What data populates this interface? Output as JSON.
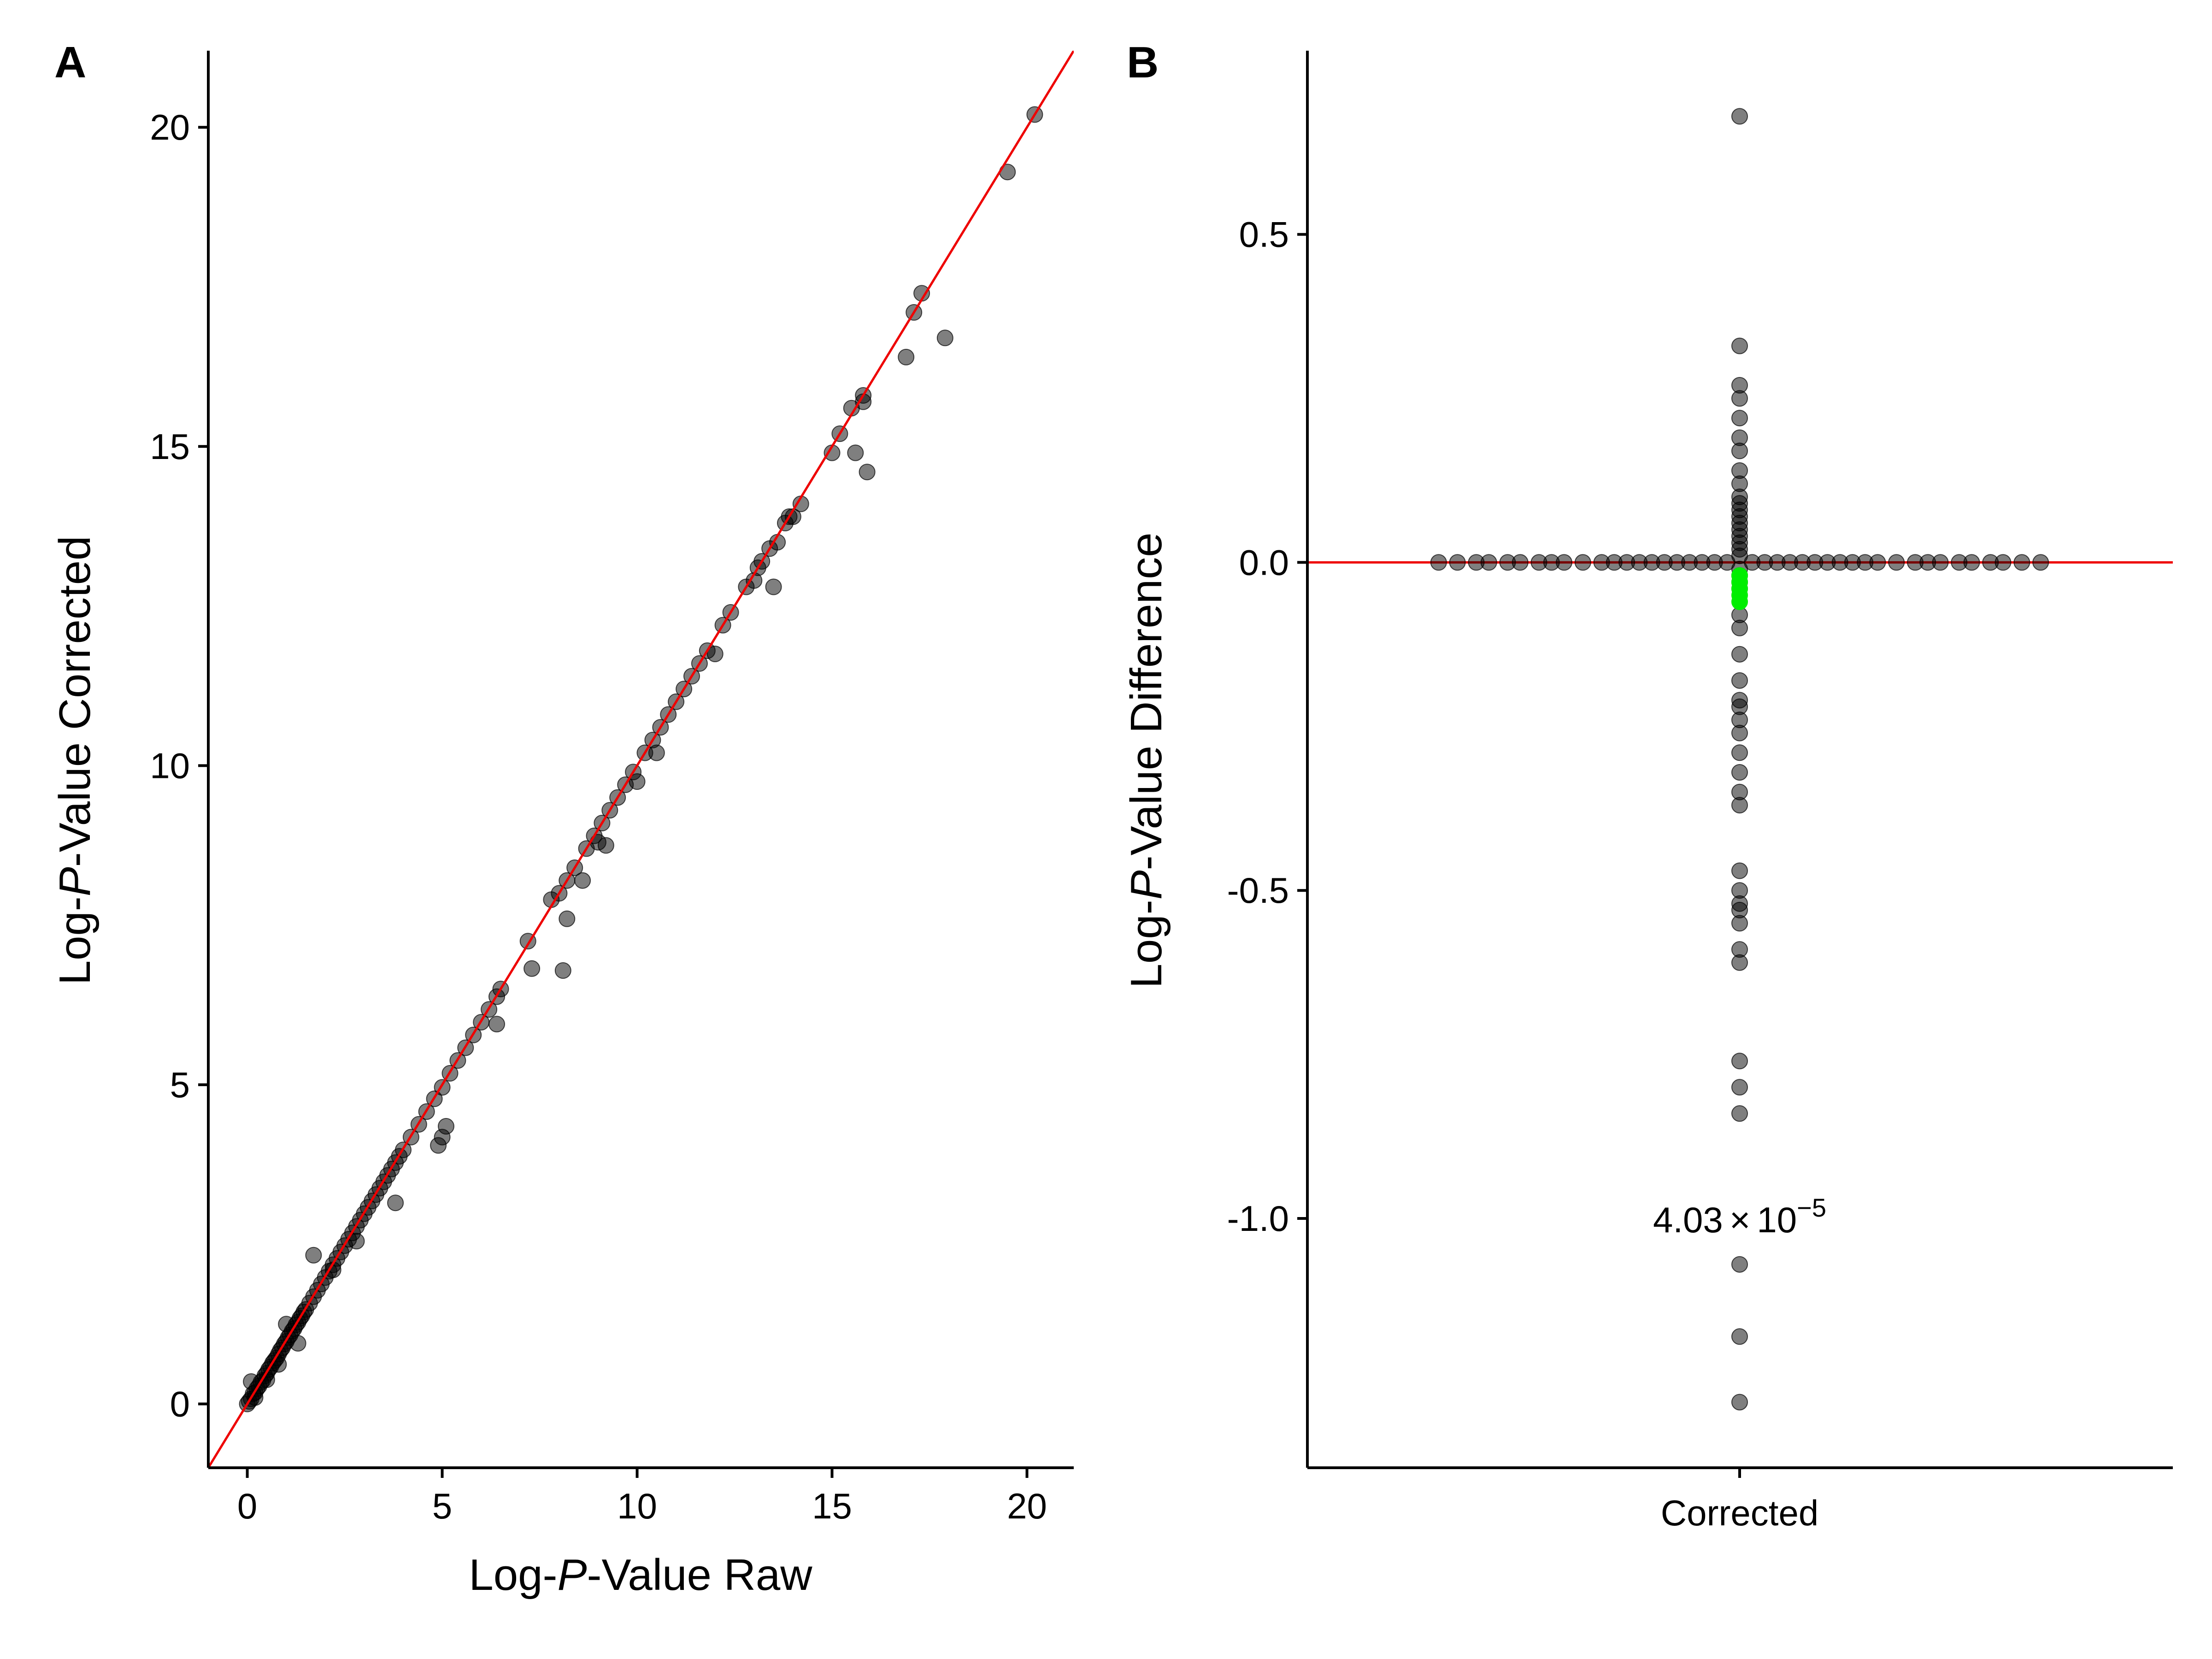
{
  "chart_data": [
    {
      "panel": "A",
      "type": "scatter",
      "title": "",
      "xlabel": {
        "pre": "Log-",
        "italic": "P",
        "post": "-Value Raw"
      },
      "ylabel": {
        "pre": "Log-",
        "italic": "P",
        "post": "-Value Corrected"
      },
      "xlim": [
        -1,
        21.2
      ],
      "ylim": [
        -1,
        21.2
      ],
      "xticks": [
        0,
        5,
        10,
        15,
        20
      ],
      "yticks": [
        0,
        5,
        10,
        15,
        20
      ],
      "xtick_labels": [
        "0",
        "5",
        "10",
        "15",
        "20"
      ],
      "ytick_labels": [
        "0",
        "5",
        "10",
        "15",
        "20"
      ],
      "reference_line": {
        "type": "identity",
        "slope": 1,
        "intercept": 0,
        "color": "#ee0000"
      },
      "point_color": "#000000",
      "point_alpha": 0.5,
      "grid": false,
      "legend": "none",
      "points": [
        [
          0,
          0
        ],
        [
          0.05,
          0.04
        ],
        [
          0.1,
          0.08
        ],
        [
          0.15,
          0.16
        ],
        [
          0.2,
          0.18
        ],
        [
          0.25,
          0.24
        ],
        [
          0.3,
          0.28
        ],
        [
          0.35,
          0.34
        ],
        [
          0.4,
          0.37
        ],
        [
          0.45,
          0.44
        ],
        [
          0.5,
          0.48
        ],
        [
          0.55,
          0.54
        ],
        [
          0.6,
          0.58
        ],
        [
          0.65,
          0.64
        ],
        [
          0.7,
          0.68
        ],
        [
          0.75,
          0.72
        ],
        [
          0.8,
          0.78
        ],
        [
          0.85,
          0.84
        ],
        [
          0.9,
          0.88
        ],
        [
          0.95,
          0.94
        ],
        [
          1.0,
          0.98
        ],
        [
          1.05,
          1.04
        ],
        [
          1.1,
          1.08
        ],
        [
          1.15,
          1.14
        ],
        [
          1.2,
          1.18
        ],
        [
          1.25,
          1.24
        ],
        [
          1.3,
          1.28
        ],
        [
          1.35,
          1.34
        ],
        [
          1.4,
          1.38
        ],
        [
          1.45,
          1.44
        ],
        [
          1.5,
          1.48
        ],
        [
          1.6,
          1.58
        ],
        [
          1.7,
          1.68
        ],
        [
          1.8,
          1.78
        ],
        [
          1.9,
          1.88
        ],
        [
          2.0,
          1.98
        ],
        [
          2.1,
          2.08
        ],
        [
          2.2,
          2.18
        ],
        [
          2.3,
          2.28
        ],
        [
          2.4,
          2.38
        ],
        [
          2.5,
          2.48
        ],
        [
          2.6,
          2.58
        ],
        [
          2.7,
          2.68
        ],
        [
          2.8,
          2.78
        ],
        [
          2.9,
          2.88
        ],
        [
          3.0,
          2.98
        ],
        [
          3.1,
          3.08
        ],
        [
          3.2,
          3.18
        ],
        [
          3.3,
          3.28
        ],
        [
          3.4,
          3.38
        ],
        [
          3.5,
          3.48
        ],
        [
          3.6,
          3.58
        ],
        [
          3.7,
          3.68
        ],
        [
          3.8,
          3.78
        ],
        [
          3.9,
          3.88
        ],
        [
          4.0,
          3.98
        ],
        [
          4.2,
          4.18
        ],
        [
          4.4,
          4.38
        ],
        [
          4.6,
          4.58
        ],
        [
          4.8,
          4.78
        ],
        [
          5.0,
          4.96
        ],
        [
          5.2,
          5.18
        ],
        [
          5.4,
          5.38
        ],
        [
          5.6,
          5.58
        ],
        [
          5.8,
          5.78
        ],
        [
          6.0,
          5.98
        ],
        [
          6.2,
          6.18
        ],
        [
          6.4,
          6.38
        ],
        [
          6.5,
          6.5
        ],
        [
          0.1,
          0.35
        ],
        [
          0.2,
          0.1
        ],
        [
          0.5,
          0.38
        ],
        [
          0.8,
          0.62
        ],
        [
          1.0,
          1.25
        ],
        [
          1.3,
          0.95
        ],
        [
          1.7,
          2.33
        ],
        [
          2.2,
          2.1
        ],
        [
          2.8,
          2.55
        ],
        [
          3.8,
          3.15
        ],
        [
          4.9,
          4.05
        ],
        [
          5.0,
          4.18
        ],
        [
          5.1,
          4.35
        ],
        [
          6.4,
          5.95
        ],
        [
          7.3,
          6.82
        ],
        [
          8.1,
          6.79
        ],
        [
          8.2,
          7.6
        ],
        [
          7.2,
          7.25
        ],
        [
          7.8,
          7.9
        ],
        [
          8.0,
          8.0
        ],
        [
          8.2,
          8.2
        ],
        [
          8.4,
          8.4
        ],
        [
          8.6,
          8.2
        ],
        [
          8.7,
          8.7
        ],
        [
          8.9,
          8.9
        ],
        [
          9.0,
          8.8
        ],
        [
          9.1,
          9.1
        ],
        [
          9.2,
          8.75
        ],
        [
          9.3,
          9.3
        ],
        [
          9.5,
          9.5
        ],
        [
          9.7,
          9.7
        ],
        [
          9.9,
          9.9
        ],
        [
          10.0,
          9.75
        ],
        [
          10.2,
          10.2
        ],
        [
          10.4,
          10.4
        ],
        [
          10.5,
          10.2
        ],
        [
          10.6,
          10.6
        ],
        [
          10.8,
          10.8
        ],
        [
          11.0,
          11.0
        ],
        [
          11.2,
          11.2
        ],
        [
          11.4,
          11.4
        ],
        [
          11.6,
          11.6
        ],
        [
          11.8,
          11.8
        ],
        [
          12.0,
          11.75
        ],
        [
          12.2,
          12.2
        ],
        [
          12.4,
          12.4
        ],
        [
          12.8,
          12.8
        ],
        [
          13.0,
          12.9
        ],
        [
          13.1,
          13.1
        ],
        [
          13.2,
          13.2
        ],
        [
          13.4,
          13.4
        ],
        [
          13.5,
          12.8
        ],
        [
          13.6,
          13.5
        ],
        [
          13.8,
          13.8
        ],
        [
          13.9,
          13.9
        ],
        [
          14.0,
          13.9
        ],
        [
          14.2,
          14.1
        ],
        [
          15.0,
          14.9
        ],
        [
          15.2,
          15.2
        ],
        [
          15.5,
          15.6
        ],
        [
          15.6,
          14.9
        ],
        [
          15.8,
          15.7
        ],
        [
          15.9,
          14.6
        ],
        [
          15.8,
          15.8
        ],
        [
          16.9,
          16.4
        ],
        [
          17.1,
          17.1
        ],
        [
          17.3,
          17.4
        ],
        [
          17.9,
          16.7
        ],
        [
          19.5,
          19.3
        ],
        [
          20.2,
          20.2
        ]
      ]
    },
    {
      "panel": "B",
      "type": "scatter",
      "title": "",
      "xlabel": "",
      "ylabel": {
        "pre": "Log-",
        "italic": "P",
        "post": "-Value Difference"
      },
      "categories": [
        "Corrected"
      ],
      "ylim": [
        -1.38,
        0.78
      ],
      "yticks": [
        -1.0,
        -0.5,
        0.0,
        0.5
      ],
      "ytick_labels": [
        "-1.0",
        "-0.5",
        "0.0",
        "0.5"
      ],
      "reference_line": {
        "type": "horizontal",
        "y": 0,
        "color": "#ee0000"
      },
      "point_color": "#000000",
      "highlight_color": "#00ee00",
      "point_alpha": 0.5,
      "grid": false,
      "legend": "none",
      "annotation": {
        "base": "4.03",
        "times": "×",
        "ten": "10",
        "exponent": "−5",
        "y": -1.0
      },
      "vertical_points": [
        0.68,
        0.33,
        0.27,
        0.25,
        0.22,
        0.19,
        0.17,
        0.14,
        0.12,
        0.1,
        0.09,
        0.08,
        0.07,
        0.06,
        0.05,
        0.04,
        0.03,
        0.02,
        0.01,
        -0.01,
        -0.02,
        -0.03,
        -0.04,
        -0.08,
        -0.1,
        -0.14,
        -0.18,
        -0.21,
        -0.22,
        -0.24,
        -0.26,
        -0.29,
        -0.32,
        -0.35,
        -0.37,
        -0.47,
        -0.5,
        -0.52,
        -0.53,
        -0.55,
        -0.59,
        -0.61,
        -0.76,
        -0.8,
        -0.84,
        -1.07,
        -1.18,
        -1.28
      ],
      "horizontal_points": [
        [
          -0.48,
          0
        ],
        [
          -0.45,
          0
        ],
        [
          -0.42,
          0
        ],
        [
          -0.4,
          0
        ],
        [
          -0.37,
          0
        ],
        [
          -0.35,
          0
        ],
        [
          -0.32,
          0
        ],
        [
          -0.3,
          0
        ],
        [
          -0.28,
          0
        ],
        [
          -0.25,
          0
        ],
        [
          -0.22,
          0
        ],
        [
          -0.2,
          0
        ],
        [
          -0.18,
          0
        ],
        [
          -0.16,
          0
        ],
        [
          -0.14,
          0
        ],
        [
          -0.12,
          0
        ],
        [
          -0.1,
          0
        ],
        [
          -0.08,
          0
        ],
        [
          -0.06,
          0
        ],
        [
          -0.04,
          0
        ],
        [
          -0.02,
          0
        ],
        [
          0.02,
          0
        ],
        [
          0.04,
          0
        ],
        [
          0.06,
          0
        ],
        [
          0.08,
          0
        ],
        [
          0.1,
          0
        ],
        [
          0.12,
          0
        ],
        [
          0.14,
          0
        ],
        [
          0.16,
          0
        ],
        [
          0.18,
          0
        ],
        [
          0.2,
          0
        ],
        [
          0.22,
          0
        ],
        [
          0.25,
          0
        ],
        [
          0.28,
          0
        ],
        [
          0.3,
          0
        ],
        [
          0.32,
          0
        ],
        [
          0.35,
          0
        ],
        [
          0.37,
          0
        ],
        [
          0.4,
          0
        ],
        [
          0.42,
          0
        ],
        [
          0.45,
          0
        ],
        [
          0.48,
          0
        ]
      ],
      "highlight_points": [
        -0.02,
        -0.03,
        -0.04,
        -0.05,
        -0.06
      ]
    }
  ]
}
